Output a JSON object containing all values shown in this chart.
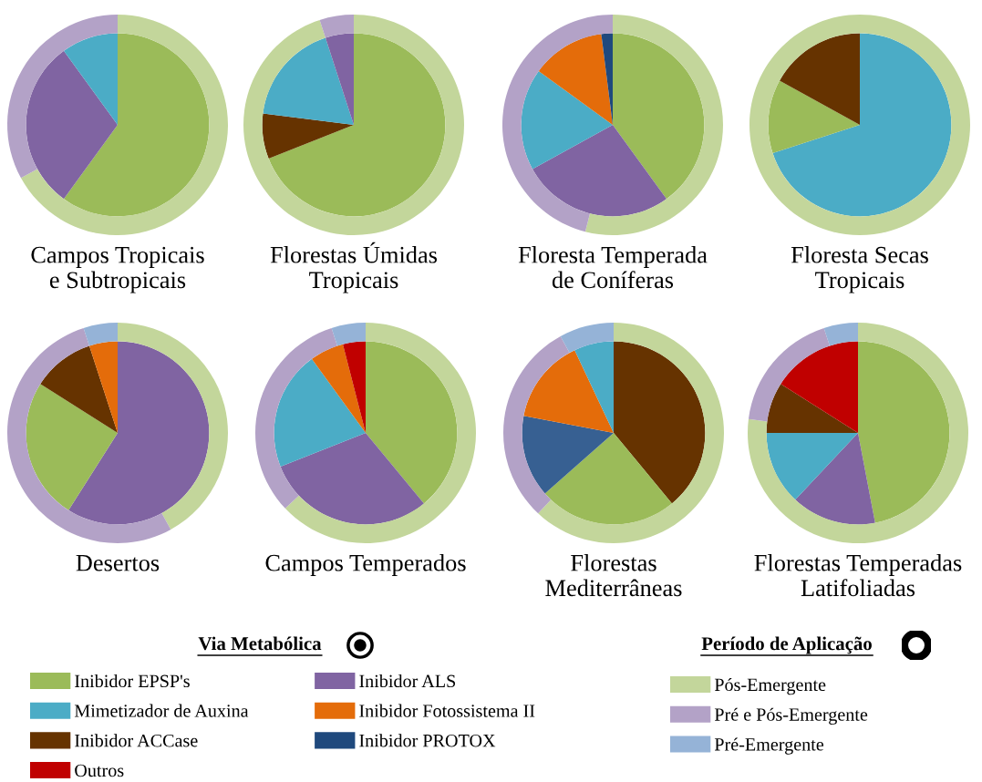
{
  "chart_data": [
    {
      "type": "pie",
      "title": "Campos Tropicais\ne Subtropicais",
      "series": [
        {
          "type": "pie",
          "values": [
            60,
            30,
            10
          ],
          "colors": [
            "#9bbb59",
            "#8064a2",
            "#4bacc6"
          ]
        },
        {
          "type": "donut",
          "values": [
            67,
            33
          ],
          "colors": [
            "#c3d69b",
            "#b3a2c7"
          ]
        }
      ]
    },
    {
      "type": "pie",
      "title": "Florestas Úmidas\nTropicais",
      "series": [
        {
          "type": "pie",
          "values": [
            69,
            8,
            18,
            5
          ],
          "colors": [
            "#9bbb59",
            "#663300",
            "#4bacc6",
            "#8064a2"
          ]
        },
        {
          "type": "donut",
          "values": [
            95,
            5
          ],
          "colors": [
            "#c3d69b",
            "#b3a2c7"
          ]
        }
      ]
    },
    {
      "type": "pie",
      "title": "Floresta Temperada\nde Coníferas",
      "series": [
        {
          "type": "pie",
          "values": [
            40,
            27,
            18,
            13,
            2
          ],
          "colors": [
            "#9bbb59",
            "#8064a2",
            "#4bacc6",
            "#e46c0a",
            "#1f497d"
          ]
        },
        {
          "type": "donut",
          "values": [
            54,
            46
          ],
          "colors": [
            "#c3d69b",
            "#b3a2c7"
          ]
        }
      ]
    },
    {
      "type": "pie",
      "title": "Floresta Secas\nTropicais",
      "series": [
        {
          "type": "pie",
          "values": [
            70,
            13,
            17
          ],
          "colors": [
            "#4bacc6",
            "#9bbb59",
            "#663300"
          ]
        },
        {
          "type": "donut",
          "values": [
            100
          ],
          "colors": [
            "#c3d69b"
          ]
        }
      ]
    },
    {
      "type": "pie",
      "title": "Desertos",
      "series": [
        {
          "type": "pie",
          "values": [
            59,
            25,
            11,
            5
          ],
          "colors": [
            "#8064a2",
            "#9bbb59",
            "#663300",
            "#e46c0a"
          ]
        },
        {
          "type": "donut",
          "values": [
            42,
            53,
            5
          ],
          "colors": [
            "#c3d69b",
            "#b3a2c7",
            "#95b3d7"
          ]
        }
      ]
    },
    {
      "type": "pie",
      "title": "Campos Temperados",
      "series": [
        {
          "type": "pie",
          "values": [
            39,
            30,
            21,
            6,
            4
          ],
          "colors": [
            "#9bbb59",
            "#8064a2",
            "#4bacc6",
            "#e46c0a",
            "#c00000"
          ]
        },
        {
          "type": "donut",
          "values": [
            63,
            32,
            5
          ],
          "colors": [
            "#c3d69b",
            "#b3a2c7",
            "#95b3d7"
          ]
        }
      ]
    },
    {
      "type": "pie",
      "title": "Florestas\nMediterrâneas",
      "series": [
        {
          "type": "pie",
          "values": [
            39,
            24.5,
            14.5,
            15,
            7
          ],
          "colors": [
            "#663300",
            "#9bbb59",
            "#376092",
            "#e46c0a",
            "#4bacc6"
          ]
        },
        {
          "type": "donut",
          "values": [
            62,
            30,
            8
          ],
          "colors": [
            "#c3d69b",
            "#b3a2c7",
            "#95b3d7"
          ]
        }
      ]
    },
    {
      "type": "pie",
      "title": "Florestas Temperadas\nLatifoliadas",
      "series": [
        {
          "type": "pie",
          "values": [
            47,
            15,
            13,
            9,
            16
          ],
          "colors": [
            "#9bbb59",
            "#8064a2",
            "#4bacc6",
            "#663300",
            "#c00000"
          ]
        },
        {
          "type": "donut",
          "values": [
            77,
            18,
            5
          ],
          "colors": [
            "#c3d69b",
            "#b3a2c7",
            "#95b3d7"
          ]
        }
      ]
    },
    {
      "type": "other",
      "legend": "bottom left",
      "legend_title": "Via Metabólica",
      "series": [
        {
          "name": "Inibidor EPSP's",
          "color": "#9bbb59"
        },
        {
          "name": "Mimetizador de Auxina",
          "color": "#4bacc6"
        },
        {
          "name": "Inibidor ACCase",
          "color": "#663300"
        },
        {
          "name": "Outros",
          "color": "#c00000"
        },
        {
          "name": "Inibidor ALS",
          "color": "#8064a2"
        },
        {
          "name": "Inibidor Fotossistema II",
          "color": "#e46c0a"
        },
        {
          "name": "Inibidor PROTOX",
          "color": "#1f497d"
        }
      ]
    },
    {
      "type": "other",
      "legend": "bottom right",
      "legend_title": "Período de Aplicação",
      "series": [
        {
          "name": "Pós-Emergente",
          "color": "#c3d69b"
        },
        {
          "name": "Pré e Pós-Emergente",
          "color": "#b3a2c7"
        },
        {
          "name": "Pré-Emergente",
          "color": "#95b3d7"
        }
      ]
    }
  ]
}
